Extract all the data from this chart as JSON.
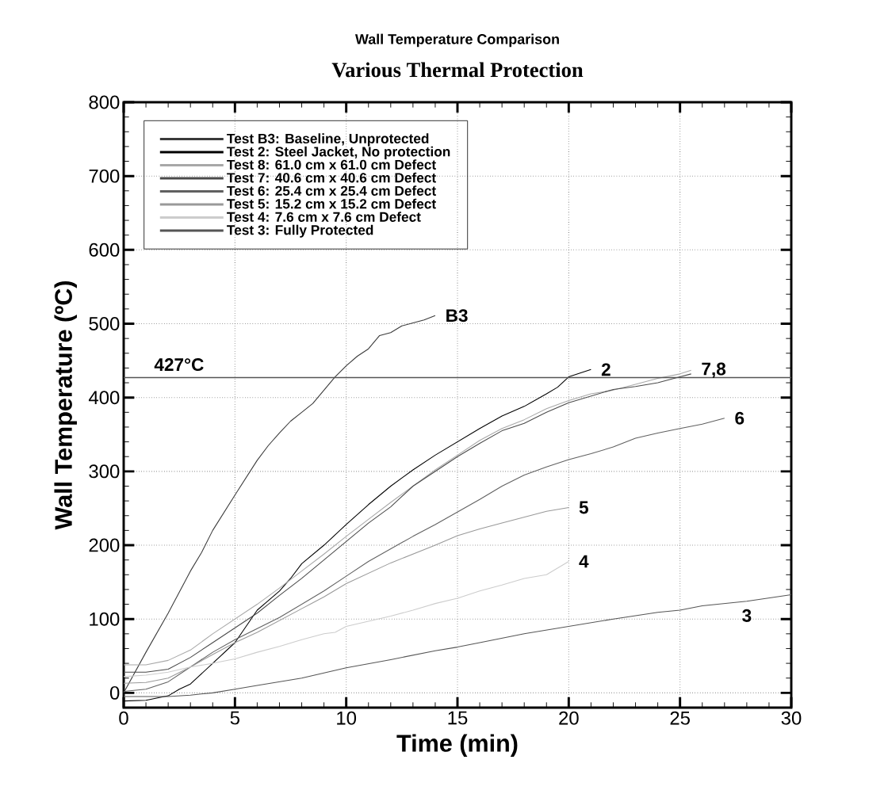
{
  "chart_data": {
    "type": "line",
    "title": "Wall Temperature Comparison",
    "subtitle": "Various Thermal Protection",
    "xlabel": "Time (min)",
    "ylabel": "Wall Temperature (ºC)",
    "xlim": [
      0,
      30
    ],
    "ylim": [
      -20,
      800
    ],
    "xticks": [
      0,
      5,
      10,
      15,
      20,
      25,
      30
    ],
    "yticks": [
      0,
      100,
      200,
      300,
      400,
      500,
      600,
      700,
      800
    ],
    "grid": true,
    "legend": "top left",
    "marker": "none",
    "line_style": "solid",
    "series": [
      {
        "name": "Test B3: Baseline, Unprotected",
        "color": "#3a3a3a",
        "x": [
          0,
          1,
          2,
          3,
          3.5,
          4,
          5,
          6,
          6.5,
          7,
          7.5,
          8,
          8.5,
          9,
          9.5,
          10,
          10.5,
          11,
          11.5,
          12,
          12.5,
          13,
          13.5,
          14
        ],
        "values": [
          0,
          55,
          108,
          165,
          190,
          220,
          268,
          315,
          335,
          352,
          368,
          380,
          392,
          410,
          428,
          443,
          456,
          466,
          484,
          488,
          497,
          501,
          505,
          511
        ]
      },
      {
        "name": "Test 2: Steel Jacket, No protection",
        "color": "#000000",
        "x": [
          0,
          1,
          2,
          2.5,
          3,
          4,
          5,
          5.5,
          6,
          7,
          7.5,
          8,
          9,
          10,
          11,
          12,
          13,
          14,
          15,
          16,
          17,
          18,
          19,
          19.5,
          20,
          21
        ],
        "values": [
          -11,
          -10,
          -4,
          5,
          12,
          40,
          68,
          90,
          112,
          138,
          155,
          175,
          200,
          228,
          255,
          280,
          302,
          322,
          340,
          358,
          375,
          388,
          405,
          414,
          428,
          438
        ]
      },
      {
        "name": "Test 8: 61.0 cm x 61.0 cm Defect",
        "color": "#a8a8a8",
        "x": [
          0,
          1,
          2,
          3,
          4,
          5,
          6,
          7,
          8,
          9,
          10,
          11,
          12,
          13,
          14,
          15,
          16,
          17,
          18,
          19,
          20,
          21,
          22,
          23,
          24,
          25,
          25.5
        ],
        "values": [
          38,
          38,
          44,
          58,
          80,
          100,
          120,
          142,
          165,
          188,
          212,
          235,
          258,
          280,
          302,
          322,
          342,
          358,
          370,
          385,
          396,
          405,
          410,
          418,
          426,
          432,
          437
        ]
      },
      {
        "name": "Test 7: 40.6 cm x 40.6 cm Defect",
        "color": "#4a4a4a",
        "x": [
          0,
          1,
          2,
          3,
          4,
          5,
          6,
          7,
          8,
          9,
          10,
          11,
          12,
          13,
          14,
          15,
          16,
          17,
          18,
          19,
          20,
          21,
          22,
          23,
          24,
          25,
          25.5
        ],
        "values": [
          28,
          28,
          32,
          48,
          68,
          88,
          108,
          132,
          155,
          180,
          205,
          230,
          252,
          280,
          300,
          320,
          338,
          355,
          365,
          380,
          393,
          402,
          411,
          415,
          420,
          428,
          432
        ]
      },
      {
        "name": "Test 6: 25.4 cm x 25.4 cm Defect",
        "color": "#606060",
        "x": [
          0,
          1,
          2,
          3,
          4,
          5,
          6,
          7,
          8,
          9,
          10,
          11,
          12,
          13,
          14,
          15,
          16,
          17,
          18,
          19,
          20,
          21,
          22,
          23,
          24,
          25,
          26,
          27
        ],
        "values": [
          2,
          5,
          15,
          35,
          55,
          72,
          87,
          102,
          120,
          138,
          158,
          178,
          195,
          212,
          228,
          245,
          262,
          280,
          295,
          306,
          316,
          324,
          333,
          345,
          352,
          358,
          364,
          372
        ]
      },
      {
        "name": "Test 5: 15.2 cm x 15.2 cm Defect",
        "color": "#999999",
        "x": [
          0,
          1,
          2,
          3,
          4,
          5,
          6,
          7,
          8,
          9,
          10,
          11,
          12,
          13,
          14,
          15,
          16,
          17,
          18,
          19,
          20
        ],
        "values": [
          13,
          14,
          20,
          35,
          52,
          68,
          82,
          98,
          114,
          130,
          148,
          162,
          176,
          188,
          200,
          213,
          222,
          230,
          238,
          246,
          251
        ]
      },
      {
        "name": "Test 4: 7.6 cm x 7.6 cm Defect",
        "color": "#cccccc",
        "x": [
          0,
          1,
          2,
          3,
          4,
          5,
          6,
          7,
          8,
          9,
          9.5,
          10,
          11,
          12,
          13,
          14,
          15,
          16,
          17,
          18,
          19,
          20
        ],
        "values": [
          22,
          24,
          28,
          35,
          40,
          46,
          55,
          63,
          72,
          80,
          82,
          90,
          97,
          104,
          112,
          121,
          128,
          138,
          146,
          155,
          160,
          178
        ]
      },
      {
        "name": "Test 3: Fully Protected",
        "color": "#555555",
        "x": [
          0,
          2,
          3,
          4,
          5,
          6,
          8,
          10,
          12,
          14,
          15,
          16,
          18,
          20,
          22,
          24,
          25,
          26,
          28,
          30
        ],
        "values": [
          -5,
          -5,
          -3,
          0,
          5,
          10,
          20,
          34,
          45,
          57,
          62,
          68,
          80,
          90,
          100,
          109,
          112,
          118,
          124,
          133
        ]
      }
    ],
    "ref_lines": [
      {
        "axis": "y",
        "value": 427,
        "label": "427°C",
        "color": "#555555"
      }
    ],
    "annotations": [
      {
        "text": "B3",
        "x": 14,
        "y": 511
      },
      {
        "text": "2",
        "x": 21,
        "y": 438
      },
      {
        "text": "7,8",
        "x": 25.5,
        "y": 437
      },
      {
        "text": "6",
        "x": 27,
        "y": 372
      },
      {
        "text": "5",
        "x": 20,
        "y": 251
      },
      {
        "text": "4",
        "x": 20,
        "y": 178
      },
      {
        "text": "3",
        "x": 28,
        "y": 124
      }
    ]
  }
}
